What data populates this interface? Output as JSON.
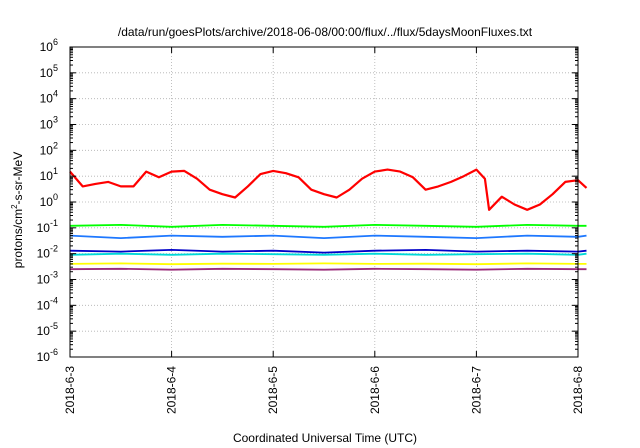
{
  "chart_data": {
    "type": "line",
    "title": "/data/run/goesPlots/archive/2018-06-08/00:00/flux/../flux/5daysMoonFluxes.txt",
    "xlabel": "Coordinated Universal Time (UTC)",
    "ylabel_base": "protons/cm",
    "ylabel_sup": "2",
    "ylabel_rest": "-s-sr-MeV",
    "y_scale": "log",
    "ylim": [
      1e-06,
      1000000.0
    ],
    "y_ticks": [
      {
        "base": "10",
        "exp": "6",
        "value": 1000000.0
      },
      {
        "base": "10",
        "exp": "5",
        "value": 100000.0
      },
      {
        "base": "10",
        "exp": "4",
        "value": 10000.0
      },
      {
        "base": "10",
        "exp": "3",
        "value": 1000.0
      },
      {
        "base": "10",
        "exp": "2",
        "value": 100.0
      },
      {
        "base": "10",
        "exp": "1",
        "value": 10.0
      },
      {
        "base": "10",
        "exp": "0",
        "value": 1
      },
      {
        "base": "10",
        "exp": "-1",
        "value": 0.1
      },
      {
        "base": "10",
        "exp": "-2",
        "value": 0.01
      },
      {
        "base": "10",
        "exp": "-3",
        "value": 0.001
      },
      {
        "base": "10",
        "exp": "-4",
        "value": 0.0001
      },
      {
        "base": "10",
        "exp": "-5",
        "value": 1e-05
      },
      {
        "base": "10",
        "exp": "-6",
        "value": 1e-06
      }
    ],
    "xlim": [
      "2018-06-03",
      "2018-06-08"
    ],
    "x_ticks": [
      "2018-6-3",
      "2018-6-4",
      "2018-6-5",
      "2018-6-6",
      "2018-6-7",
      "2018-6-8"
    ],
    "grid": true,
    "legend": "none",
    "series": [
      {
        "color": "#ff0000",
        "x": [
          "2018-06-03 00:00",
          "2018-06-03 03:00",
          "2018-06-03 06:00",
          "2018-06-03 09:00",
          "2018-06-03 12:00",
          "2018-06-03 15:00",
          "2018-06-03 18:00",
          "2018-06-03 21:00",
          "2018-06-04 00:00",
          "2018-06-04 03:00",
          "2018-06-04 06:00",
          "2018-06-04 09:00",
          "2018-06-04 12:00",
          "2018-06-04 15:00",
          "2018-06-04 18:00",
          "2018-06-04 21:00",
          "2018-06-05 00:00",
          "2018-06-05 03:00",
          "2018-06-05 06:00",
          "2018-06-05 09:00",
          "2018-06-05 12:00",
          "2018-06-05 15:00",
          "2018-06-05 18:00",
          "2018-06-05 21:00",
          "2018-06-06 00:00",
          "2018-06-06 03:00",
          "2018-06-06 06:00",
          "2018-06-06 09:00",
          "2018-06-06 12:00",
          "2018-06-06 15:00",
          "2018-06-06 18:00",
          "2018-06-06 21:00",
          "2018-06-07 00:00",
          "2018-06-07 02:00",
          "2018-06-07 03:00",
          "2018-06-07 06:00",
          "2018-06-07 09:00",
          "2018-06-07 12:00",
          "2018-06-07 15:00",
          "2018-06-07 18:00",
          "2018-06-07 21:00",
          "2018-06-08 00:00",
          "2018-06-08 02:00"
        ],
        "values": [
          15,
          4,
          5,
          6,
          4,
          4,
          15,
          9,
          15,
          16,
          8,
          3,
          2,
          1.5,
          4,
          12,
          16,
          13,
          9,
          3,
          2,
          1.5,
          3,
          8,
          15,
          18,
          15,
          9,
          3,
          4,
          6,
          10,
          18,
          8,
          0.5,
          1.6,
          0.8,
          0.5,
          0.8,
          2,
          6,
          7,
          3.5
        ]
      },
      {
        "color": "#00ff00",
        "x": [
          "2018-06-03 00:00",
          "2018-06-03 12:00",
          "2018-06-04 00:00",
          "2018-06-04 12:00",
          "2018-06-05 00:00",
          "2018-06-05 12:00",
          "2018-06-06 00:00",
          "2018-06-06 12:00",
          "2018-06-07 00:00",
          "2018-06-07 12:00",
          "2018-06-08 00:00",
          "2018-06-08 02:00"
        ],
        "values": [
          0.12,
          0.13,
          0.11,
          0.13,
          0.12,
          0.11,
          0.13,
          0.12,
          0.11,
          0.13,
          0.12,
          0.12
        ]
      },
      {
        "color": "#1e78ff",
        "x": [
          "2018-06-03 00:00",
          "2018-06-03 12:00",
          "2018-06-04 00:00",
          "2018-06-04 12:00",
          "2018-06-05 00:00",
          "2018-06-05 12:00",
          "2018-06-06 00:00",
          "2018-06-06 12:00",
          "2018-06-07 00:00",
          "2018-06-07 12:00",
          "2018-06-08 00:00",
          "2018-06-08 02:00"
        ],
        "values": [
          0.05,
          0.04,
          0.05,
          0.045,
          0.05,
          0.04,
          0.05,
          0.045,
          0.04,
          0.05,
          0.045,
          0.05
        ]
      },
      {
        "color": "#00d8d8",
        "x": [
          "2018-06-03 00:00",
          "2018-06-03 12:00",
          "2018-06-04 00:00",
          "2018-06-04 12:00",
          "2018-06-05 00:00",
          "2018-06-05 12:00",
          "2018-06-06 00:00",
          "2018-06-06 12:00",
          "2018-06-07 00:00",
          "2018-06-07 12:00",
          "2018-06-08 00:00",
          "2018-06-08 02:00"
        ],
        "values": [
          0.009,
          0.01,
          0.009,
          0.01,
          0.0095,
          0.009,
          0.01,
          0.009,
          0.0095,
          0.01,
          0.009,
          0.01
        ]
      },
      {
        "color": "#0000c8",
        "x": [
          "2018-06-03 00:00",
          "2018-06-03 12:00",
          "2018-06-04 00:00",
          "2018-06-04 12:00",
          "2018-06-05 00:00",
          "2018-06-05 12:00",
          "2018-06-06 00:00",
          "2018-06-06 12:00",
          "2018-06-07 00:00",
          "2018-06-07 12:00",
          "2018-06-08 00:00",
          "2018-06-08 02:00"
        ],
        "values": [
          0.013,
          0.012,
          0.014,
          0.012,
          0.013,
          0.011,
          0.013,
          0.014,
          0.012,
          0.013,
          0.012,
          0.013
        ]
      },
      {
        "color": "#ffff00",
        "x": [
          "2018-06-03 00:00",
          "2018-06-03 12:00",
          "2018-06-04 00:00",
          "2018-06-04 12:00",
          "2018-06-05 00:00",
          "2018-06-05 12:00",
          "2018-06-06 00:00",
          "2018-06-06 12:00",
          "2018-06-07 00:00",
          "2018-06-07 12:00",
          "2018-06-08 00:00",
          "2018-06-08 02:00"
        ],
        "values": [
          0.004,
          0.0042,
          0.0039,
          0.0041,
          0.004,
          0.0042,
          0.004,
          0.0041,
          0.0039,
          0.0042,
          0.004,
          0.004
        ]
      },
      {
        "color": "#9b2b7a",
        "x": [
          "2018-06-03 00:00",
          "2018-06-03 12:00",
          "2018-06-04 00:00",
          "2018-06-04 12:00",
          "2018-06-05 00:00",
          "2018-06-05 12:00",
          "2018-06-06 00:00",
          "2018-06-06 12:00",
          "2018-06-07 00:00",
          "2018-06-07 12:00",
          "2018-06-08 00:00",
          "2018-06-08 02:00"
        ],
        "values": [
          0.0025,
          0.0026,
          0.0024,
          0.0026,
          0.0025,
          0.0024,
          0.0026,
          0.0025,
          0.0024,
          0.0026,
          0.0025,
          0.0025
        ]
      }
    ]
  }
}
